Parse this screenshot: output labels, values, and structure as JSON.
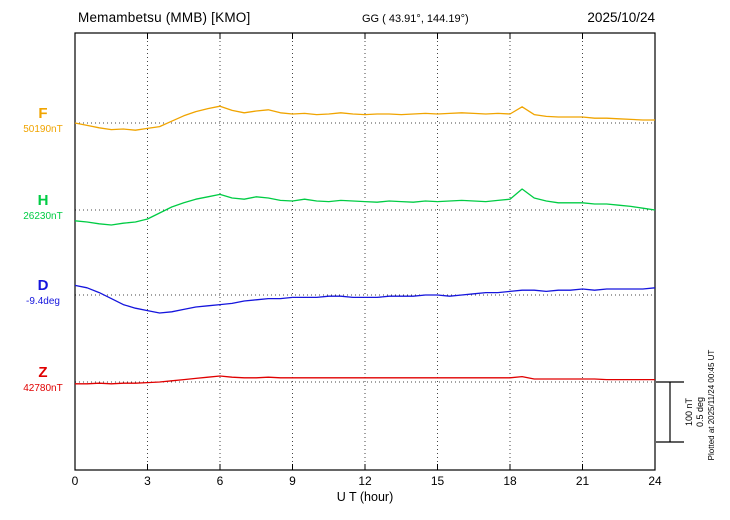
{
  "header": {
    "title": "Memambetsu (MMB)  [KMO]",
    "coords": "GG ( 43.91°, 144.19°)",
    "date": "2025/10/24"
  },
  "channels": [
    {
      "label": "F",
      "value_label": "50190nT",
      "units": "nT",
      "color": "#f0a400"
    },
    {
      "label": "H",
      "value_label": "26230nT",
      "units": "nT",
      "color": "#00cc44"
    },
    {
      "label": "D",
      "value_label": "-9.4deg",
      "units": "deg",
      "color": "#1515dd"
    },
    {
      "label": "Z",
      "value_label": "42780nT",
      "units": "nT",
      "color": "#e00000"
    }
  ],
  "axis": {
    "label": "U T (hour)",
    "ticks": [
      "0",
      "3",
      "6",
      "9",
      "12",
      "15",
      "18",
      "21",
      "24"
    ]
  },
  "scalebar": {
    "line1": "100 nT",
    "line2": "0.5 deg"
  },
  "footer_note": "Plotted at 2025/11/24 00:45 UT",
  "chart_data": {
    "type": "line",
    "title": "Memambetsu (MMB) [KMO] magnetogram 2025/10/24",
    "xlabel": "U T (hour)",
    "x_range": [
      0,
      24
    ],
    "x_step": 0.5,
    "grid": "dotted vertical every 3 hours, dotted horizontal baseline per channel",
    "scale_reference": {
      "nT": 100,
      "deg": 0.5
    },
    "series": [
      {
        "name": "F",
        "units": "nT",
        "baseline_value": 50190,
        "color": "#f0a400",
        "offsets_from_baseline": [
          0,
          -4,
          -8,
          -11,
          -10,
          -12,
          -9,
          -6,
          3,
          12,
          19,
          24,
          28,
          21,
          17,
          20,
          22,
          17,
          15,
          16,
          14,
          15,
          17,
          15,
          14,
          15,
          15,
          14,
          15,
          16,
          15,
          16,
          17,
          16,
          15,
          16,
          15,
          27,
          14,
          11,
          10,
          10,
          10,
          8,
          8,
          7,
          6,
          5,
          5
        ]
      },
      {
        "name": "H",
        "units": "nT",
        "baseline_value": 26230,
        "color": "#00cc44",
        "offsets_from_baseline": [
          -18,
          -20,
          -23,
          -25,
          -22,
          -20,
          -15,
          -5,
          5,
          12,
          18,
          22,
          26,
          20,
          18,
          22,
          20,
          16,
          15,
          18,
          15,
          14,
          16,
          15,
          14,
          13,
          15,
          14,
          13,
          15,
          14,
          15,
          16,
          15,
          14,
          16,
          18,
          35,
          20,
          15,
          12,
          12,
          12,
          10,
          10,
          8,
          6,
          3,
          0
        ]
      },
      {
        "name": "D",
        "units": "deg",
        "baseline_value": -9.4,
        "color": "#1515dd",
        "offsets_from_baseline": [
          0.08,
          0.06,
          0.02,
          -0.03,
          -0.08,
          -0.11,
          -0.13,
          -0.15,
          -0.14,
          -0.12,
          -0.1,
          -0.09,
          -0.08,
          -0.07,
          -0.05,
          -0.04,
          -0.03,
          -0.03,
          -0.02,
          -0.02,
          -0.02,
          -0.01,
          -0.01,
          -0.02,
          -0.02,
          -0.02,
          -0.01,
          -0.01,
          -0.01,
          0.0,
          0.0,
          -0.01,
          0.0,
          0.01,
          0.02,
          0.02,
          0.03,
          0.04,
          0.04,
          0.03,
          0.04,
          0.04,
          0.05,
          0.04,
          0.05,
          0.05,
          0.05,
          0.05,
          0.06
        ]
      },
      {
        "name": "Z",
        "units": "nT",
        "baseline_value": 42780,
        "color": "#e00000",
        "offsets_from_baseline": [
          -3,
          -3,
          -2,
          -3,
          -2,
          -2,
          -1,
          0,
          2,
          4,
          6,
          8,
          10,
          8,
          7,
          7,
          8,
          7,
          7,
          7,
          7,
          7,
          7,
          7,
          7,
          7,
          7,
          7,
          7,
          7,
          7,
          7,
          7,
          7,
          7,
          7,
          7,
          9,
          5,
          5,
          5,
          5,
          5,
          5,
          4,
          4,
          4,
          4,
          4
        ]
      }
    ]
  }
}
